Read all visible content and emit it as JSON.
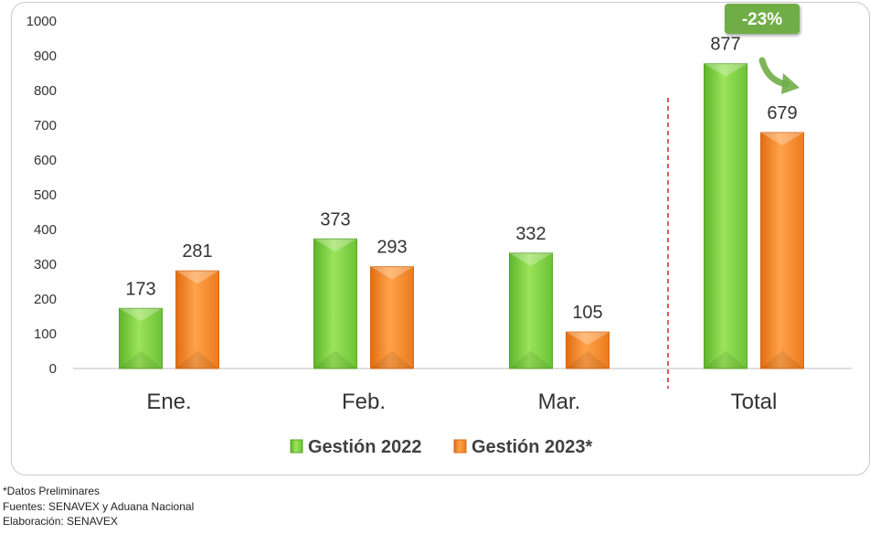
{
  "chart_data": {
    "type": "bar",
    "categories": [
      "Ene.",
      "Feb.",
      "Mar.",
      "Total"
    ],
    "series": [
      {
        "name": "Gestión 2022",
        "values": [
          173,
          373,
          332,
          877
        ],
        "color": "#7fd13b"
      },
      {
        "name": "Gestión 2023*",
        "values": [
          281,
          293,
          105,
          679
        ],
        "color": "#f58220"
      }
    ],
    "title": "",
    "xlabel": "",
    "ylabel": "",
    "ylim": [
      0,
      1000
    ],
    "yticks": [
      "0",
      "100",
      "200",
      "300",
      "400",
      "500",
      "600",
      "700",
      "800",
      "900",
      "1000"
    ],
    "grid": false,
    "legend_position": "bottom",
    "annotation": {
      "text": "-23%",
      "color": "#70ad47"
    },
    "separator_color": "#d9262c"
  },
  "notes": {
    "preliminary": "*Datos Preliminares",
    "sources": "Fuentes: SENAVEX y Aduana Nacional",
    "elaboration": "Elaboración: SENAVEX"
  }
}
